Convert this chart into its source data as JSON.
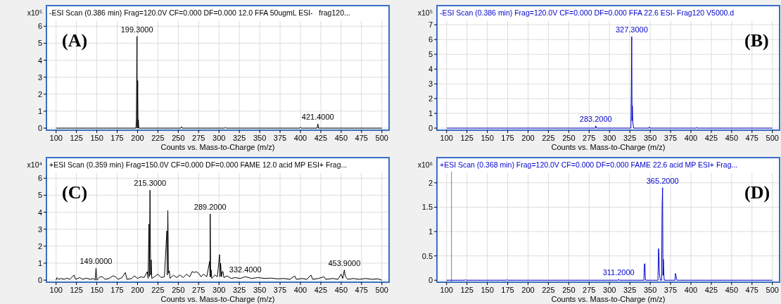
{
  "chart_data": [
    {
      "type": "line",
      "title": "-ESI Scan (0.386 min) Frag=120.0V CF=0.000 DF=0.000 12.0 FFA 50ugmL ESI-   frag120...",
      "xlabel": "Counts vs. Mass-to-Charge (m/z)",
      "ylabel": "x10⁵",
      "xlim": [
        89,
        508
      ],
      "xticks": [
        100,
        125,
        150,
        175,
        200,
        225,
        250,
        275,
        300,
        325,
        350,
        375,
        400,
        425,
        450,
        475,
        500
      ],
      "ylim": [
        -0.12,
        6.3
      ],
      "yticks": [
        0,
        1,
        2,
        3,
        4,
        5,
        6
      ],
      "grid": true,
      "series": [
        {
          "color": "#000000",
          "x": [
            100,
            198,
            198.6,
            199.3,
            199.6,
            200.2,
            200.6,
            201,
            201.5,
            253,
            254,
            255,
            307,
            308,
            309,
            399,
            400,
            401,
            420.5,
            421.4,
            422.3,
            500
          ],
          "values": [
            0,
            0,
            0.5,
            5.4,
            0,
            2.8,
            0,
            0.5,
            0,
            0,
            0.08,
            0,
            0,
            0.05,
            0,
            0,
            0.05,
            0,
            0,
            0.25,
            0,
            0
          ]
        }
      ],
      "annotations": [
        "(A)",
        {
          "text": "199.3000",
          "x": 199.3,
          "y": 5.4
        },
        {
          "text": "421.4000",
          "x": 421.4,
          "y": 0.25
        }
      ]
    },
    {
      "type": "line",
      "title": "-ESI Scan (0.386 min) Frag=120.0V CF=0.000 DF=0.000 FFA 22.6 ESI- Frag120 V5000.d",
      "xlabel": "Counts vs. Mass-to-Charge (m/z)",
      "ylabel": "x10⁵",
      "xlim": [
        89,
        508
      ],
      "xticks": [
        100,
        125,
        150,
        175,
        200,
        225,
        250,
        275,
        300,
        325,
        350,
        375,
        400,
        425,
        450,
        475,
        500
      ],
      "ylim": [
        -0.14,
        7.25
      ],
      "yticks": [
        0,
        1,
        2,
        3,
        4,
        5,
        6,
        7
      ],
      "grid": true,
      "series": [
        {
          "color": "#0000cc",
          "x": [
            100,
            282.5,
            283.2,
            284,
            326.3,
            326.8,
            327.3,
            327.7,
            328.1,
            328.6,
            329,
            329.6,
            348.5,
            349,
            349.6,
            406.5,
            407,
            407.6,
            500
          ],
          "values": [
            0,
            0,
            0.15,
            0,
            0,
            2.2,
            6.2,
            0.5,
            1.5,
            0.3,
            0.3,
            0,
            0,
            0.07,
            0,
            0,
            0.05,
            0,
            0
          ]
        }
      ],
      "annotations": [
        "(B)",
        {
          "text": "327.3000",
          "x": 327.3,
          "y": 6.2
        },
        {
          "text": "283.2000",
          "x": 283.2,
          "y": 0.15
        }
      ]
    },
    {
      "type": "line",
      "title": "+ESI Scan (0.359 min) Frag=150.0V CF=0.000 DF=0.000 FAME 12.0 acid MP ESI+ Frag...",
      "xlabel": "Counts vs. Mass-to-Charge (m/z)",
      "ylabel": "x10⁴",
      "xlim": [
        89,
        508
      ],
      "xticks": [
        100,
        125,
        150,
        175,
        200,
        225,
        250,
        275,
        300,
        325,
        350,
        375,
        400,
        425,
        450,
        475,
        500
      ],
      "ylim": [
        -0.12,
        6.3
      ],
      "yticks": [
        0,
        1,
        2,
        3,
        4,
        5,
        6
      ],
      "grid": true,
      "series": [
        {
          "color": "#000000",
          "x": [
            100,
            101,
            103,
            106,
            110,
            113,
            117,
            122,
            124,
            129,
            133,
            137,
            142,
            146,
            148,
            149,
            150,
            154,
            157,
            160,
            165,
            170,
            173,
            176,
            181,
            185,
            187,
            193,
            196,
            200,
            204,
            208,
            212,
            213,
            214,
            214.6,
            215.3,
            216,
            216.8,
            217.5,
            221,
            225,
            229,
            233,
            236,
            236.5,
            237.2,
            238,
            239,
            240,
            244,
            248,
            252,
            256,
            260,
            264,
            267,
            270,
            272,
            275,
            278,
            281,
            285,
            288.5,
            289,
            289.2,
            289.8,
            290.4,
            291,
            295,
            298,
            300.7,
            301.3,
            302,
            303,
            304,
            305,
            306,
            310,
            315,
            320,
            326,
            332.4,
            340,
            348,
            356,
            364,
            372,
            380,
            387,
            393,
            395,
            402,
            408,
            413,
            415,
            422,
            429,
            431,
            440,
            446,
            450,
            452,
            453.9,
            455,
            458,
            465,
            472,
            480,
            488,
            495,
            500
          ],
          "values": [
            0,
            0.15,
            0.05,
            0.1,
            0.05,
            0.12,
            0.05,
            0.3,
            0.05,
            0.15,
            0.05,
            0.12,
            0.05,
            0.1,
            0,
            0.7,
            0,
            0.2,
            0.2,
            0.05,
            0.1,
            0.25,
            0.2,
            0.05,
            0.15,
            0.45,
            0.05,
            0.1,
            0.25,
            0.1,
            0.2,
            0.15,
            0.5,
            0.1,
            3.3,
            0.2,
            5.3,
            0.3,
            1.2,
            0.1,
            0.2,
            0.35,
            0.15,
            0.2,
            2.9,
            0.3,
            4.1,
            0.4,
            0.55,
            0.1,
            0.3,
            0.15,
            0.3,
            0.15,
            0.35,
            0.2,
            0.5,
            0.45,
            0.5,
            0.4,
            0.2,
            0.35,
            0.2,
            1.1,
            0.2,
            3.9,
            0.2,
            0.6,
            0.1,
            0.3,
            0.2,
            1.5,
            0.2,
            1.0,
            0.2,
            0.5,
            0.5,
            0.15,
            0.25,
            0.1,
            0.15,
            0.1,
            0.2,
            0.1,
            0.15,
            0.1,
            0.12,
            0.08,
            0.1,
            0.05,
            0.25,
            0.05,
            0.1,
            0.05,
            0.3,
            0.05,
            0.1,
            0.2,
            0.05,
            0.1,
            0.05,
            0.35,
            0.1,
            0.6,
            0.25,
            0.05,
            0.1,
            0.05,
            0.1,
            0.05,
            0.08,
            0
          ]
        }
      ],
      "annotations": [
        "(C)",
        {
          "text": "215.3000",
          "x": 215.3,
          "y": 5.3
        },
        {
          "text": "289.2000",
          "x": 289.2,
          "y": 3.9
        },
        {
          "text": "149.0000",
          "x": 149,
          "y": 0.7
        },
        {
          "text": "332.4000",
          "x": 332.4,
          "y": 0.2
        },
        {
          "text": "453.9000",
          "x": 453.9,
          "y": 0.6
        }
      ]
    },
    {
      "type": "line",
      "title": "+ESI Scan (0.368 min) Frag=120.0V CF=0.000 DF=0.000 FAME 22.6 acid MP ESI+ Frag...",
      "xlabel": "Counts vs. Mass-to-Charge (m/z)",
      "ylabel": "x10⁶",
      "xlim": [
        89,
        508
      ],
      "xticks": [
        100,
        125,
        150,
        175,
        200,
        225,
        250,
        275,
        300,
        325,
        350,
        375,
        400,
        425,
        450,
        475,
        500
      ],
      "ylim": [
        -0.04,
        2.2
      ],
      "yticks": [
        0,
        0.5,
        1,
        1.5,
        2
      ],
      "grid": true,
      "ref_lines": [
        {
          "axis": "x",
          "value": 106,
          "color": "#808080"
        }
      ],
      "series": [
        {
          "color": "#0000cc",
          "x": [
            100,
            122,
            123,
            124,
            173,
            174,
            175,
            310.5,
            311.2,
            312,
            342.3,
            342.8,
            343.5,
            344,
            344.5,
            359.5,
            360.2,
            360.8,
            361.3,
            362,
            362.5,
            364,
            364.6,
            365.2,
            365.7,
            366.2,
            366.8,
            367.3,
            380.5,
            381,
            381.6,
            382.3,
            383,
            500
          ],
          "values": [
            0,
            0,
            0.01,
            0,
            0,
            0.01,
            0,
            0,
            0.02,
            0,
            0,
            0.33,
            0.34,
            0.05,
            0,
            0,
            0.65,
            0.5,
            0.15,
            0.05,
            0,
            0,
            1.5,
            1.9,
            0.1,
            0.43,
            0.1,
            0,
            0,
            0.14,
            0.1,
            0.03,
            0,
            0
          ]
        }
      ],
      "annotations": [
        "(D)",
        {
          "text": "365.2000",
          "x": 365.2,
          "y": 1.9
        },
        {
          "text": "311.2000",
          "x": 311.2,
          "y": 0.02
        }
      ]
    }
  ]
}
